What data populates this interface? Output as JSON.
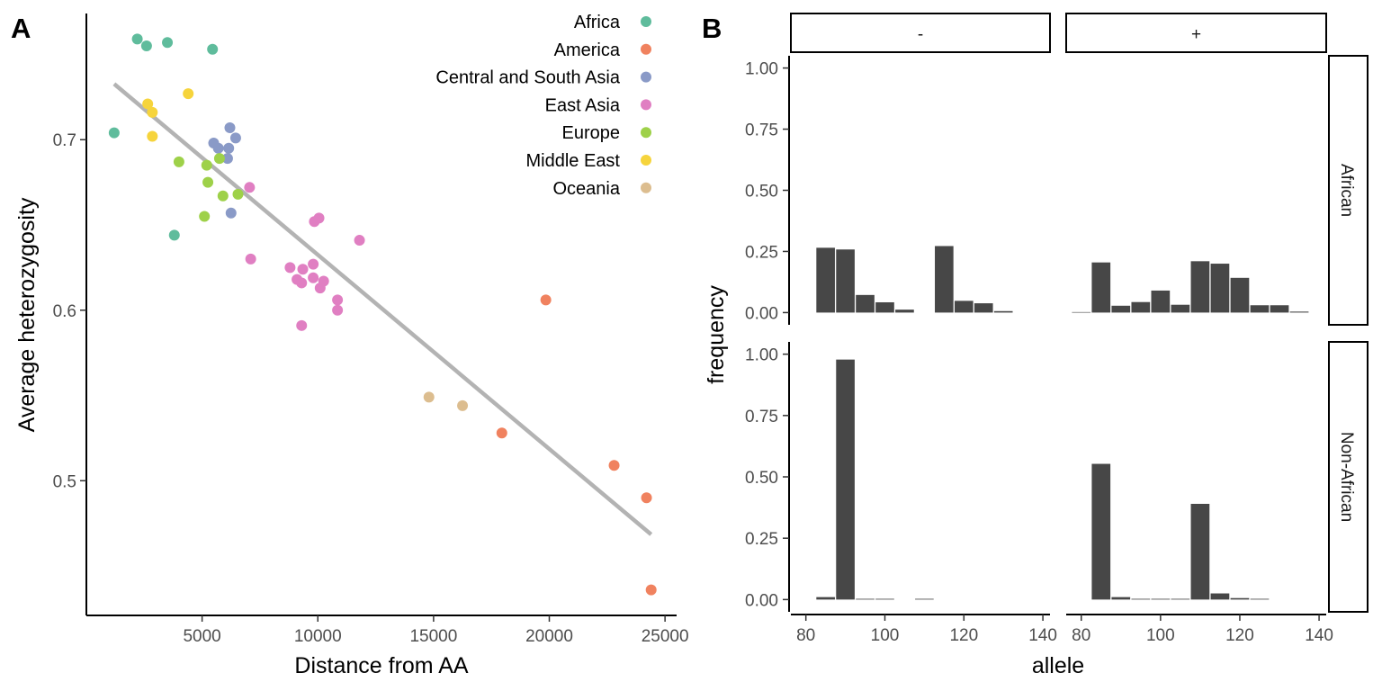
{
  "chart_data": [
    {
      "type": "scatter",
      "panel_label": "A",
      "xlabel": "Distance from AA",
      "ylabel": "Average heterozygosity",
      "xlim": [
        0,
        25500
      ],
      "ylim": [
        0.421,
        0.774
      ],
      "xticks": [
        5000,
        10000,
        15000,
        20000,
        25000
      ],
      "yticks": [
        0.5,
        0.6,
        0.7
      ],
      "ytick_labels": [
        "0.5",
        "0.6",
        "0.7"
      ],
      "grid": false,
      "legend_position": "top-right",
      "trend_line": {
        "x": [
          1200,
          24400
        ],
        "y": [
          0.7327,
          0.4685
        ],
        "color": "#b3b3b3"
      },
      "series": [
        {
          "name": "Africa",
          "color": "#5fbc9c",
          "points": [
            [
              1200,
              0.704
            ],
            [
              2200,
              0.759
            ],
            [
              2600,
              0.755
            ],
            [
              3500,
              0.757
            ],
            [
              3800,
              0.644
            ],
            [
              5450,
              0.753
            ]
          ]
        },
        {
          "name": "America",
          "color": "#f0825f",
          "points": [
            [
              19850,
              0.606
            ],
            [
              17950,
              0.528
            ],
            [
              22800,
              0.509
            ],
            [
              24200,
              0.49
            ],
            [
              24400,
              0.436
            ]
          ]
        },
        {
          "name": "Central and South Asia",
          "color": "#8a9ac7",
          "points": [
            [
              5500,
              0.698
            ],
            [
              5700,
              0.695
            ],
            [
              6100,
              0.689
            ],
            [
              6150,
              0.695
            ],
            [
              6200,
              0.707
            ],
            [
              6450,
              0.701
            ],
            [
              6250,
              0.657
            ]
          ]
        },
        {
          "name": "East Asia",
          "color": "#e07fc2",
          "points": [
            [
              7050,
              0.672
            ],
            [
              7100,
              0.63
            ],
            [
              8800,
              0.625
            ],
            [
              9100,
              0.618
            ],
            [
              9300,
              0.616
            ],
            [
              9350,
              0.624
            ],
            [
              9800,
              0.619
            ],
            [
              9800,
              0.627
            ],
            [
              9850,
              0.652
            ],
            [
              10050,
              0.654
            ],
            [
              10100,
              0.613
            ],
            [
              10250,
              0.617
            ],
            [
              10850,
              0.606
            ],
            [
              10850,
              0.6
            ],
            [
              11800,
              0.641
            ],
            [
              9300,
              0.591
            ]
          ]
        },
        {
          "name": "Europe",
          "color": "#9ed149",
          "points": [
            [
              4000,
              0.687
            ],
            [
              5100,
              0.655
            ],
            [
              5200,
              0.685
            ],
            [
              5250,
              0.675
            ],
            [
              5750,
              0.689
            ],
            [
              5900,
              0.667
            ],
            [
              6550,
              0.668
            ]
          ]
        },
        {
          "name": "Middle East",
          "color": "#f6d43c",
          "points": [
            [
              2650,
              0.721
            ],
            [
              2850,
              0.716
            ],
            [
              2850,
              0.702
            ],
            [
              4400,
              0.727
            ]
          ]
        },
        {
          "name": "Oceania",
          "color": "#dcbd8f",
          "points": [
            [
              14800,
              0.549
            ],
            [
              16250,
              0.544
            ]
          ]
        }
      ]
    },
    {
      "type": "bar",
      "panel_label": "B",
      "xlabel": "allele",
      "ylabel": "frequency",
      "xlim": [
        76.2,
        141.8
      ],
      "ylim": [
        -0.05,
        1.05
      ],
      "xticks": [
        80,
        100,
        120,
        140
      ],
      "yticks": [
        0,
        0.25,
        0.5,
        0.75,
        1.0
      ],
      "ytick_labels": [
        "0.00",
        "0.25",
        "0.50",
        "0.75",
        "1.00"
      ],
      "bar_width": 4.7,
      "bar_color": "#474747",
      "grid": false,
      "facet_columns": [
        "-",
        "+"
      ],
      "facet_rows": [
        "African",
        "Non-African"
      ],
      "facets": [
        {
          "row": "African",
          "column": "-",
          "x": [
            85,
            90,
            95,
            100,
            105,
            115,
            120,
            125,
            130
          ],
          "values": [
            0.265,
            0.258,
            0.072,
            0.042,
            0.012,
            0.272,
            0.048,
            0.038,
            0.006
          ]
        },
        {
          "row": "African",
          "column": "+",
          "x": [
            80,
            85,
            90,
            95,
            100,
            105,
            110,
            115,
            120,
            125,
            130,
            135
          ],
          "values": [
            0.002,
            0.205,
            0.028,
            0.043,
            0.09,
            0.032,
            0.21,
            0.2,
            0.142,
            0.03,
            0.03,
            0.004
          ]
        },
        {
          "row": "Non-African",
          "column": "-",
          "x": [
            85,
            90,
            95,
            100,
            110
          ],
          "values": [
            0.01,
            0.978,
            0.003,
            0.003,
            0.003
          ]
        },
        {
          "row": "Non-African",
          "column": "+",
          "x": [
            85,
            90,
            95,
            100,
            105,
            110,
            115,
            120,
            125
          ],
          "values": [
            0.553,
            0.01,
            0.003,
            0.003,
            0.003,
            0.39,
            0.025,
            0.006,
            0.003
          ]
        }
      ]
    }
  ]
}
